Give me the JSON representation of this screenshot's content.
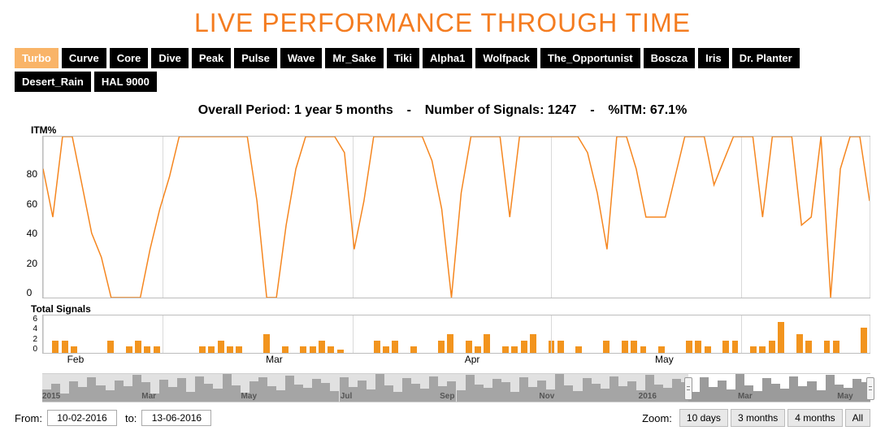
{
  "title": {
    "text": "LIVE PERFORMANCE THROUGH TIME",
    "color": "#f47c20",
    "fontsize": 32
  },
  "tabs": {
    "items": [
      "Turbo",
      "Curve",
      "Core",
      "Dive",
      "Peak",
      "Pulse",
      "Wave",
      "Mr_Sake",
      "Tiki",
      "Alpha1",
      "Wolfpack",
      "The_Opportunist",
      "Boscza",
      "Iris",
      "Dr. Planter",
      "Desert_Rain",
      "HAL 9000"
    ],
    "active_index": 0,
    "active_bg": "#f9b468",
    "inactive_bg": "#000000",
    "text_color": "#ffffff"
  },
  "summary": {
    "period_label": "Overall Period:",
    "period_value": "1 year 5 months",
    "signals_label": "Number of Signals:",
    "signals_value": "1247",
    "itm_label": "%ITM:",
    "itm_value": "67.1%",
    "separator": "-"
  },
  "itm_chart": {
    "type": "line",
    "axis_title": "ITM%",
    "line_color": "#f5861f",
    "line_width": 1.5,
    "ylim": [
      0,
      100
    ],
    "yticks": [
      0,
      20,
      40,
      60,
      80
    ],
    "grid_color": "#d9d9d9",
    "x_gridlines_pct": [
      0,
      14.5,
      37.5,
      61.5,
      84.5,
      100
    ],
    "x_tick_labels": [
      {
        "label": "Feb",
        "pct": 3
      },
      {
        "label": "Mar",
        "pct": 27
      },
      {
        "label": "Apr",
        "pct": 51
      },
      {
        "label": "May",
        "pct": 74
      }
    ],
    "values": [
      80,
      50,
      100,
      100,
      70,
      40,
      25,
      0,
      0,
      0,
      0,
      30,
      55,
      75,
      100,
      100,
      100,
      100,
      100,
      100,
      100,
      100,
      60,
      0,
      0,
      45,
      80,
      100,
      100,
      100,
      100,
      90,
      30,
      60,
      100,
      100,
      100,
      100,
      100,
      100,
      85,
      55,
      0,
      65,
      100,
      100,
      100,
      100,
      50,
      100,
      100,
      100,
      100,
      100,
      100,
      100,
      90,
      65,
      30,
      100,
      100,
      80,
      50,
      50,
      50,
      75,
      100,
      100,
      100,
      70,
      85,
      100,
      100,
      100,
      50,
      100,
      100,
      100,
      45,
      50,
      100,
      0,
      80,
      100,
      100,
      60
    ]
  },
  "signals_chart": {
    "type": "bar",
    "title": "Total Signals",
    "bar_color": "#f2941e",
    "ylim": [
      0,
      6
    ],
    "yticks": [
      0,
      2,
      4,
      6
    ],
    "values": [
      0,
      2,
      2,
      1,
      0,
      0,
      0,
      2,
      0,
      1,
      2,
      1,
      1,
      0,
      0,
      0,
      0,
      1,
      1,
      2,
      1,
      1,
      0,
      0,
      3,
      0,
      1,
      0,
      1,
      1,
      2,
      1,
      0.5,
      0,
      0,
      0,
      2,
      1,
      2,
      0,
      1,
      0,
      0,
      2,
      3,
      0,
      2,
      1,
      3,
      0,
      1,
      1,
      2,
      3,
      0,
      2,
      2,
      0,
      1,
      0,
      0,
      2,
      0,
      2,
      2,
      1,
      0,
      1,
      0,
      0,
      2,
      2,
      1,
      0,
      2,
      2,
      0,
      1,
      1,
      2,
      5,
      0,
      3,
      2,
      0,
      2,
      2,
      0,
      0,
      4
    ]
  },
  "navigator": {
    "mask_color": "rgba(180,180,180,0.4)",
    "fill_color": "#9b9b9b",
    "selection_start_pct": 78,
    "selection_end_pct": 100,
    "labels": [
      {
        "text": "2015",
        "pct": 0
      },
      {
        "text": "Mar",
        "pct": 12
      },
      {
        "text": "May",
        "pct": 24
      },
      {
        "text": "Jul",
        "pct": 36
      },
      {
        "text": "Sep",
        "pct": 48
      },
      {
        "text": "Nov",
        "pct": 60
      },
      {
        "text": "2016",
        "pct": 72
      },
      {
        "text": "Mar",
        "pct": 84
      },
      {
        "text": "May",
        "pct": 96
      }
    ],
    "values": [
      15,
      22,
      10,
      25,
      18,
      30,
      20,
      14,
      26,
      19,
      33,
      24,
      10,
      27,
      18,
      29,
      12,
      31,
      22,
      16,
      34,
      20,
      11,
      25,
      30,
      19,
      14,
      32,
      21,
      17,
      28,
      23,
      13,
      30,
      18,
      26,
      15,
      34,
      20,
      12,
      29,
      22,
      16,
      31,
      19,
      25,
      14,
      33,
      21,
      17,
      28,
      24,
      12,
      30,
      18,
      26,
      15,
      34,
      20,
      13,
      29,
      22,
      16,
      31,
      19,
      25,
      14,
      33,
      21,
      17,
      28,
      24,
      12,
      30,
      18,
      26,
      15,
      34,
      20,
      13,
      29,
      22,
      16,
      31,
      19,
      25,
      14,
      33,
      21,
      17,
      28,
      24
    ]
  },
  "footer": {
    "from_label": "From:",
    "from_value": "10-02-2016",
    "to_label": "to:",
    "to_value": "13-06-2016",
    "zoom_label": "Zoom:",
    "zoom_buttons": [
      "10 days",
      "3 months",
      "4 months",
      "All"
    ]
  }
}
